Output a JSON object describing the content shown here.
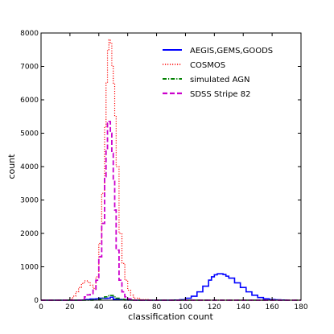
{
  "chart_data": {
    "type": "line",
    "drawstyle": "steps",
    "xlabel": "classification count",
    "ylabel": "count",
    "xlim": [
      0,
      180
    ],
    "ylim": [
      0,
      8000
    ],
    "xticks": [
      0,
      20,
      40,
      60,
      80,
      100,
      120,
      140,
      160,
      180
    ],
    "yticks": [
      0,
      1000,
      2000,
      3000,
      4000,
      5000,
      6000,
      7000,
      8000
    ],
    "grid": false,
    "legend_position": "top-right",
    "series": [
      {
        "name": "AEGIS,GEMS,GOODS",
        "color": "#0000ff",
        "style": "solid",
        "x": [
          0,
          20,
          26,
          30,
          34,
          38,
          40,
          44,
          46,
          48,
          50,
          52,
          54,
          56,
          60,
          66,
          72,
          80,
          90,
          96,
          100,
          104,
          108,
          112,
          116,
          118,
          120,
          122,
          124,
          126,
          128,
          130,
          134,
          138,
          142,
          146,
          150,
          154,
          158,
          162,
          166,
          170
        ],
        "y": [
          0,
          0,
          5,
          20,
          35,
          40,
          60,
          55,
          60,
          90,
          30,
          25,
          20,
          15,
          5,
          0,
          0,
          0,
          5,
          15,
          60,
          120,
          250,
          420,
          600,
          700,
          760,
          790,
          790,
          770,
          720,
          660,
          520,
          380,
          250,
          150,
          80,
          40,
          20,
          10,
          5,
          0
        ]
      },
      {
        "name": "COSMOS",
        "color": "#ff0000",
        "style": "dotted",
        "x": [
          0,
          18,
          20,
          22,
          24,
          26,
          28,
          30,
          32,
          34,
          36,
          38,
          40,
          42,
          44,
          45,
          46,
          47,
          48,
          49,
          50,
          51,
          52,
          54,
          56,
          58,
          60,
          62,
          64,
          68,
          75,
          180
        ],
        "y": [
          0,
          0,
          30,
          120,
          250,
          380,
          500,
          580,
          540,
          450,
          350,
          700,
          1700,
          3200,
          5200,
          6500,
          7500,
          7800,
          7700,
          7000,
          6500,
          5500,
          4000,
          2000,
          1100,
          600,
          300,
          150,
          60,
          20,
          0,
          0
        ]
      },
      {
        "name": "simulated AGN",
        "color": "#008000",
        "style": "dashdot",
        "x": [
          0,
          30,
          36,
          40,
          42,
          44,
          46,
          48,
          50,
          52,
          54,
          58,
          64,
          180
        ],
        "y": [
          0,
          0,
          10,
          30,
          60,
          100,
          130,
          140,
          100,
          60,
          25,
          5,
          0,
          0
        ]
      },
      {
        "name": "SDSS Stripe 82",
        "color": "#cc00cc",
        "style": "dashed",
        "x": [
          0,
          24,
          28,
          30,
          32,
          34,
          36,
          38,
          40,
          42,
          44,
          45,
          46,
          47,
          48,
          49,
          50,
          51,
          52,
          54,
          56,
          58,
          60,
          64,
          180
        ],
        "y": [
          0,
          0,
          30,
          100,
          160,
          200,
          300,
          600,
          1300,
          2300,
          3700,
          4500,
          5300,
          5350,
          5000,
          4400,
          3600,
          2700,
          1500,
          600,
          250,
          100,
          40,
          0,
          0
        ]
      }
    ]
  }
}
